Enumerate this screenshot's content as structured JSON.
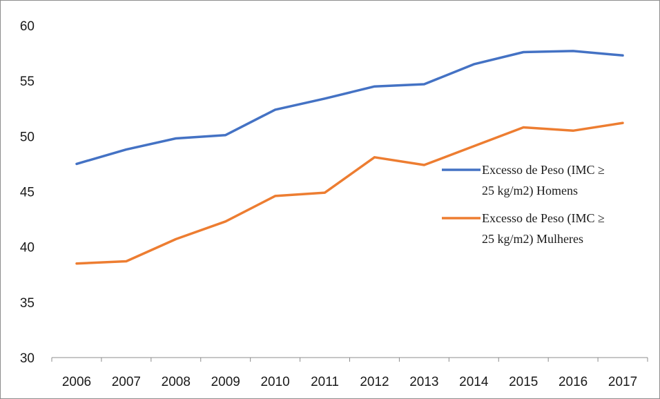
{
  "chart_data": {
    "type": "line",
    "title": "",
    "xlabel": "",
    "ylabel": "",
    "categories": [
      "2006",
      "2007",
      "2008",
      "2009",
      "2010",
      "2011",
      "2012",
      "2013",
      "2014",
      "2015",
      "2016",
      "2017"
    ],
    "ylim": [
      30,
      60
    ],
    "yticks": [
      "30",
      "35",
      "40",
      "45",
      "50",
      "55",
      "60"
    ],
    "grid": false,
    "legend_position": "right",
    "series": [
      {
        "name_line1": "Excesso de Peso (IMC ≥",
        "name_line2": "25 kg/m2) Homens",
        "color": "#4472C4",
        "values": [
          47.5,
          48.8,
          49.8,
          50.1,
          52.4,
          53.4,
          54.5,
          54.7,
          56.5,
          57.6,
          57.7,
          57.3
        ]
      },
      {
        "name_line1": "Excesso de Peso (IMC ≥",
        "name_line2": "25 kg/m2) Mulheres",
        "color": "#ED7D31",
        "values": [
          38.5,
          38.7,
          40.7,
          42.3,
          44.6,
          44.9,
          48.1,
          47.4,
          49.1,
          50.8,
          50.5,
          51.2
        ]
      }
    ]
  }
}
